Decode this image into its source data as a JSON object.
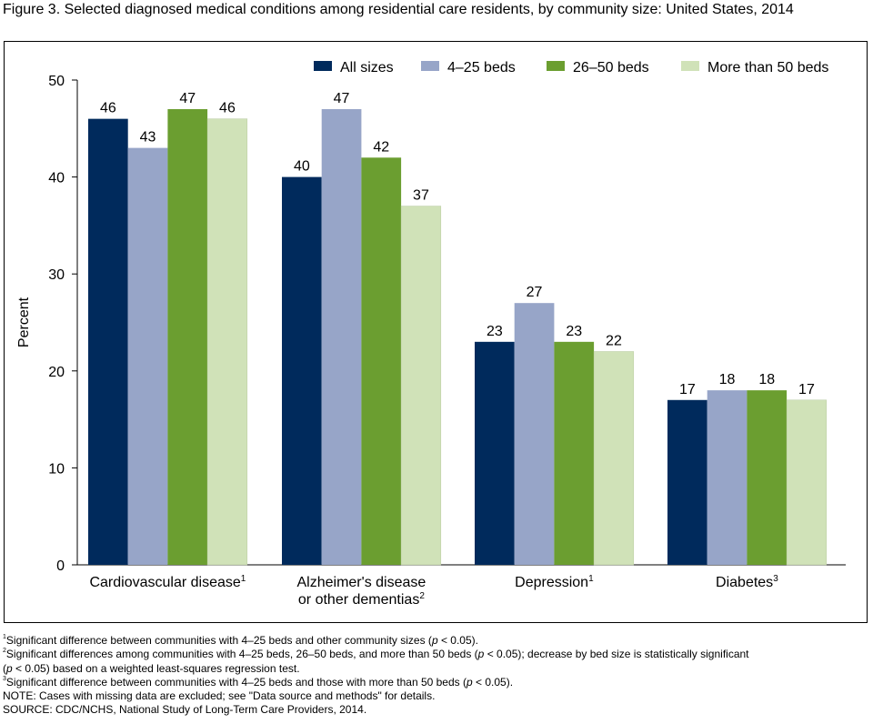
{
  "chart_data": {
    "type": "bar",
    "title": "Figure 3. Selected diagnosed medical conditions among residential care residents, by community size: United States, 2014",
    "ylabel": "Percent",
    "xlabel": "",
    "ylim": [
      0,
      50
    ],
    "yticks": [
      0,
      10,
      20,
      30,
      40,
      50
    ],
    "grid": false,
    "legend": "top-right",
    "categories": [
      {
        "lines": [
          "Cardiovascular disease"
        ],
        "sup": "1"
      },
      {
        "lines": [
          "Alzheimer's disease",
          "or other dementias"
        ],
        "sup": "2"
      },
      {
        "lines": [
          "Depression"
        ],
        "sup": "1"
      },
      {
        "lines": [
          "Diabetes"
        ],
        "sup": "3"
      }
    ],
    "series": [
      {
        "name": "All sizes",
        "color": "#002a5c",
        "values": [
          46,
          40,
          23,
          17
        ]
      },
      {
        "name": "4–25 beds",
        "color": "#97a5c8",
        "values": [
          43,
          47,
          27,
          18
        ]
      },
      {
        "name": "26–50 beds",
        "color": "#6b9e30",
        "values": [
          47,
          42,
          23,
          18
        ]
      },
      {
        "name": "More than 50 beds",
        "color": "#d0e2b8",
        "values": [
          46,
          37,
          22,
          17
        ]
      }
    ]
  },
  "notes": [
    {
      "sup": "1",
      "segments": [
        {
          "t": "Significant difference between communities with 4–25 beds and other community sizes ("
        },
        {
          "t": "p",
          "i": true
        },
        {
          "t": " < 0.05)."
        }
      ]
    },
    {
      "sup": "2",
      "segments": [
        {
          "t": "Significant differences among communities with 4–25 beds, 26–50 beds, and more than 50 beds ("
        },
        {
          "t": "p",
          "i": true
        },
        {
          "t": " < 0.05); decrease by bed size is statistically significant"
        }
      ]
    },
    {
      "sup": "",
      "segments": [
        {
          "t": "("
        },
        {
          "t": "p",
          "i": true
        },
        {
          "t": " < 0.05) based on a weighted least-squares regression test."
        }
      ]
    },
    {
      "sup": "3",
      "segments": [
        {
          "t": "Significant difference between communities with 4–25 beds and those with more than 50 beds ("
        },
        {
          "t": "p",
          "i": true
        },
        {
          "t": " < 0.05)."
        }
      ]
    },
    {
      "sup": "",
      "segments": [
        {
          "t": "NOTE: Cases with missing data are excluded; see \"Data source and methods\" for details."
        }
      ]
    },
    {
      "sup": "",
      "segments": [
        {
          "t": "SOURCE: CDC/NCHS, National Study of Long-Term Care Providers, 2014."
        }
      ]
    }
  ]
}
